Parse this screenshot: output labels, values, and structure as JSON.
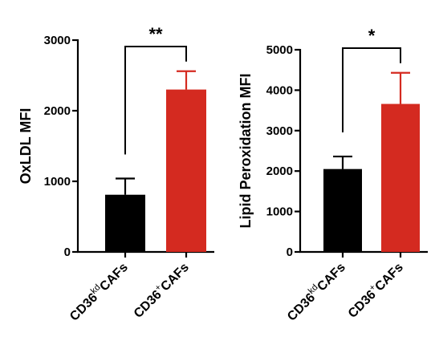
{
  "chart_data": [
    {
      "type": "bar",
      "ylabel": "OxLDL MFI",
      "ylim": [
        0,
        3000
      ],
      "yticks": [
        0,
        1000,
        2000,
        3000
      ],
      "categories": [
        {
          "main": "CD36",
          "sup": "kd",
          "tail": "CAFs"
        },
        {
          "main": "CD36",
          "sup": "+",
          "tail": "CAFs"
        }
      ],
      "values": [
        810,
        2300
      ],
      "errors": [
        230,
        260
      ],
      "colors": [
        "#000000",
        "#d42a20"
      ],
      "significance": "**"
    },
    {
      "type": "bar",
      "ylabel": "Lipid Peroxidation MFI",
      "ylim": [
        0,
        5000
      ],
      "yticks": [
        0,
        1000,
        2000,
        3000,
        4000,
        5000
      ],
      "categories": [
        {
          "main": "CD36",
          "sup": "kd",
          "tail": "CAFs"
        },
        {
          "main": "CD36",
          "sup": "+",
          "tail": "CAFs"
        }
      ],
      "values": [
        2050,
        3660
      ],
      "errors": [
        310,
        770
      ],
      "colors": [
        "#000000",
        "#d42a20"
      ],
      "significance": "*"
    }
  ]
}
